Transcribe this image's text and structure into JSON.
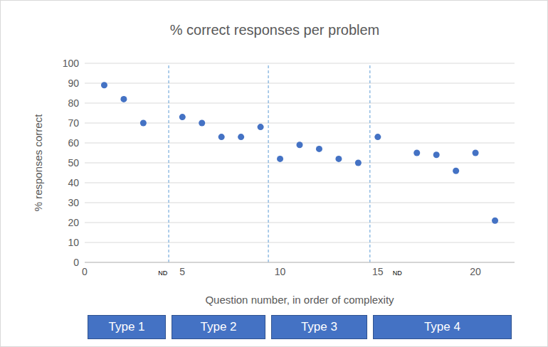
{
  "chart_data": {
    "type": "scatter",
    "title": "% correct responses per problem",
    "x_label": "Question number, in order of complexity",
    "y_label": "% responses correct",
    "x": [
      1,
      2,
      3,
      4,
      5,
      6,
      7,
      8,
      9,
      10,
      11,
      12,
      13,
      14,
      15,
      16,
      17,
      18,
      19,
      20,
      21
    ],
    "values": [
      89,
      82,
      70,
      null,
      73,
      70,
      63,
      63,
      68,
      52,
      59,
      57,
      52,
      50,
      63,
      null,
      55,
      54,
      46,
      55,
      21
    ],
    "color": "#4472c4",
    "marker": "circle",
    "xlim": [
      0,
      22
    ],
    "xticks": [
      0,
      5,
      10,
      15,
      20
    ],
    "ylim": [
      0,
      100
    ],
    "yticks": [
      0,
      10,
      20,
      30,
      40,
      50,
      60,
      70,
      80,
      90,
      100
    ],
    "grid": true,
    "dividers": [
      4.3,
      9.4,
      14.6
    ],
    "annotations": [
      {
        "text": "ND",
        "x": 4
      },
      {
        "text": "ND",
        "x": 16
      }
    ],
    "groups": [
      "Type 1",
      "Type 2",
      "Type 3",
      "Type 4"
    ]
  }
}
